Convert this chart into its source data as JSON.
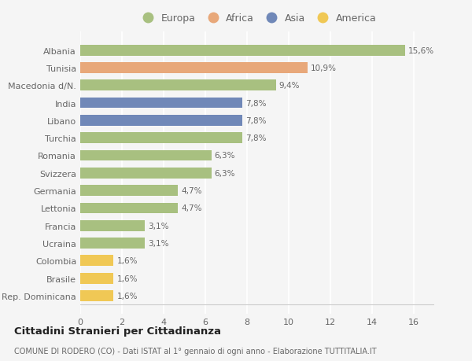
{
  "categories": [
    "Albania",
    "Tunisia",
    "Macedonia d/N.",
    "India",
    "Libano",
    "Turchia",
    "Romania",
    "Svizzera",
    "Germania",
    "Lettonia",
    "Francia",
    "Ucraina",
    "Colombia",
    "Brasile",
    "Rep. Dominicana"
  ],
  "values": [
    15.6,
    10.9,
    9.4,
    7.8,
    7.8,
    7.8,
    6.3,
    6.3,
    4.7,
    4.7,
    3.1,
    3.1,
    1.6,
    1.6,
    1.6
  ],
  "labels": [
    "15,6%",
    "10,9%",
    "9,4%",
    "7,8%",
    "7,8%",
    "7,8%",
    "6,3%",
    "6,3%",
    "4,7%",
    "4,7%",
    "3,1%",
    "3,1%",
    "1,6%",
    "1,6%",
    "1,6%"
  ],
  "continents": [
    "Europa",
    "Africa",
    "Europa",
    "Asia",
    "Asia",
    "Europa",
    "Europa",
    "Europa",
    "Europa",
    "Europa",
    "Europa",
    "Europa",
    "America",
    "America",
    "America"
  ],
  "colors": {
    "Europa": "#a8c080",
    "Africa": "#e8a87a",
    "Asia": "#7088b8",
    "America": "#f0c855"
  },
  "legend_order": [
    "Europa",
    "Africa",
    "Asia",
    "America"
  ],
  "title": "Cittadini Stranieri per Cittadinanza",
  "subtitle": "COMUNE DI RODERO (CO) - Dati ISTAT al 1° gennaio di ogni anno - Elaborazione TUTTITALIA.IT",
  "xlim": [
    0,
    17
  ],
  "xticks": [
    0,
    2,
    4,
    6,
    8,
    10,
    12,
    14,
    16
  ],
  "background_color": "#f5f5f5",
  "grid_color": "#ffffff"
}
